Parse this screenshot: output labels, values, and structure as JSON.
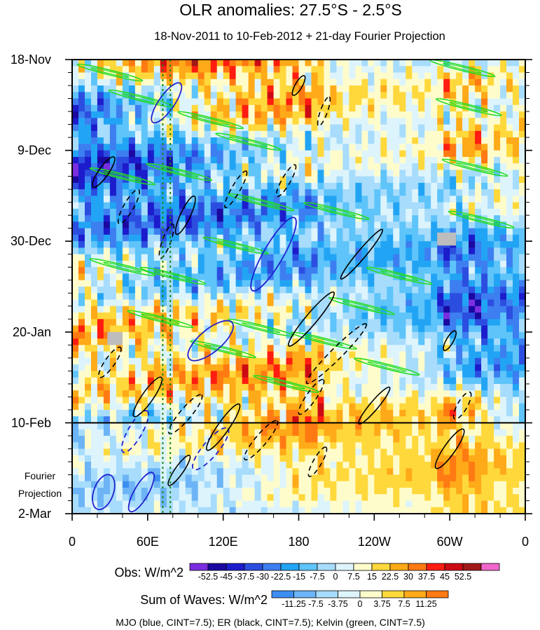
{
  "chart_data": {
    "type": "heatmap",
    "subtype": "hovmoller",
    "title": "OLR anomalies: 27.5°S - 2.5°S",
    "subtitle": "18-Nov-2011 to 10-Feb-2012 + 21-day Fourier Projection",
    "x_ticks": [
      "0",
      "60E",
      "120E",
      "180",
      "120W",
      "60W",
      "0"
    ],
    "x_values_deg_east": [
      0,
      60,
      120,
      180,
      240,
      300,
      360
    ],
    "xlim": [
      0,
      360
    ],
    "y_ticks": [
      "18-Nov",
      "9-Dec",
      "30-Dec",
      "20-Jan",
      "10-Feb",
      "2-Mar"
    ],
    "y_values_day": [
      0,
      21,
      42,
      63,
      84,
      105
    ],
    "ylim_day": [
      0,
      105
    ],
    "projection_start_day": 84,
    "projection_label": [
      "Fourier",
      "Projection"
    ],
    "obs_colorbar": {
      "label": "Obs: W/m^2",
      "levels": [
        "-52.5",
        "-45",
        "-37.5",
        "-30",
        "-22.5",
        "-15",
        "-7.5",
        "0",
        "7.5",
        "15",
        "22.5",
        "30",
        "37.5",
        "45",
        "52.5"
      ],
      "colors": [
        "#7b2ee0",
        "#1a08a0",
        "#1c1ccc",
        "#2c4ee0",
        "#3d7ef0",
        "#22a4f4",
        "#5ec4fa",
        "#a7dcfc",
        "#ddf4fc",
        "#fffccc",
        "#ffd83c",
        "#ffaa18",
        "#ff7a12",
        "#ff1c10",
        "#cc0a14",
        "#a01818",
        "#f066cc"
      ]
    },
    "waves_colorbar": {
      "label": "Sum of Waves: W/m^2",
      "levels": [
        "-11.25",
        "-7.5",
        "-3.75",
        "0",
        "3.75",
        "7.5",
        "11.25"
      ],
      "colors": [
        "#3d8ef0",
        "#6cb4f6",
        "#a7dcfc",
        "#ddf4fc",
        "#fffccc",
        "#ffd83c",
        "#ffaa18",
        "#ff7a12"
      ]
    },
    "wave_contours": {
      "MJO": {
        "color": "#2020d0",
        "cint": 7.5
      },
      "ER": {
        "color": "#000000",
        "cint": 7.5
      },
      "Kelvin": {
        "color": "#22dd22",
        "cint": 7.5
      }
    },
    "reference_lines_deg_east": [
      72,
      78
    ],
    "legend_note": "MJO (blue, CINT=7.5); ER (black, CINT=7.5); Kelvin (green, CINT=7.5)",
    "missing_data_color": "#bdbdbd"
  }
}
